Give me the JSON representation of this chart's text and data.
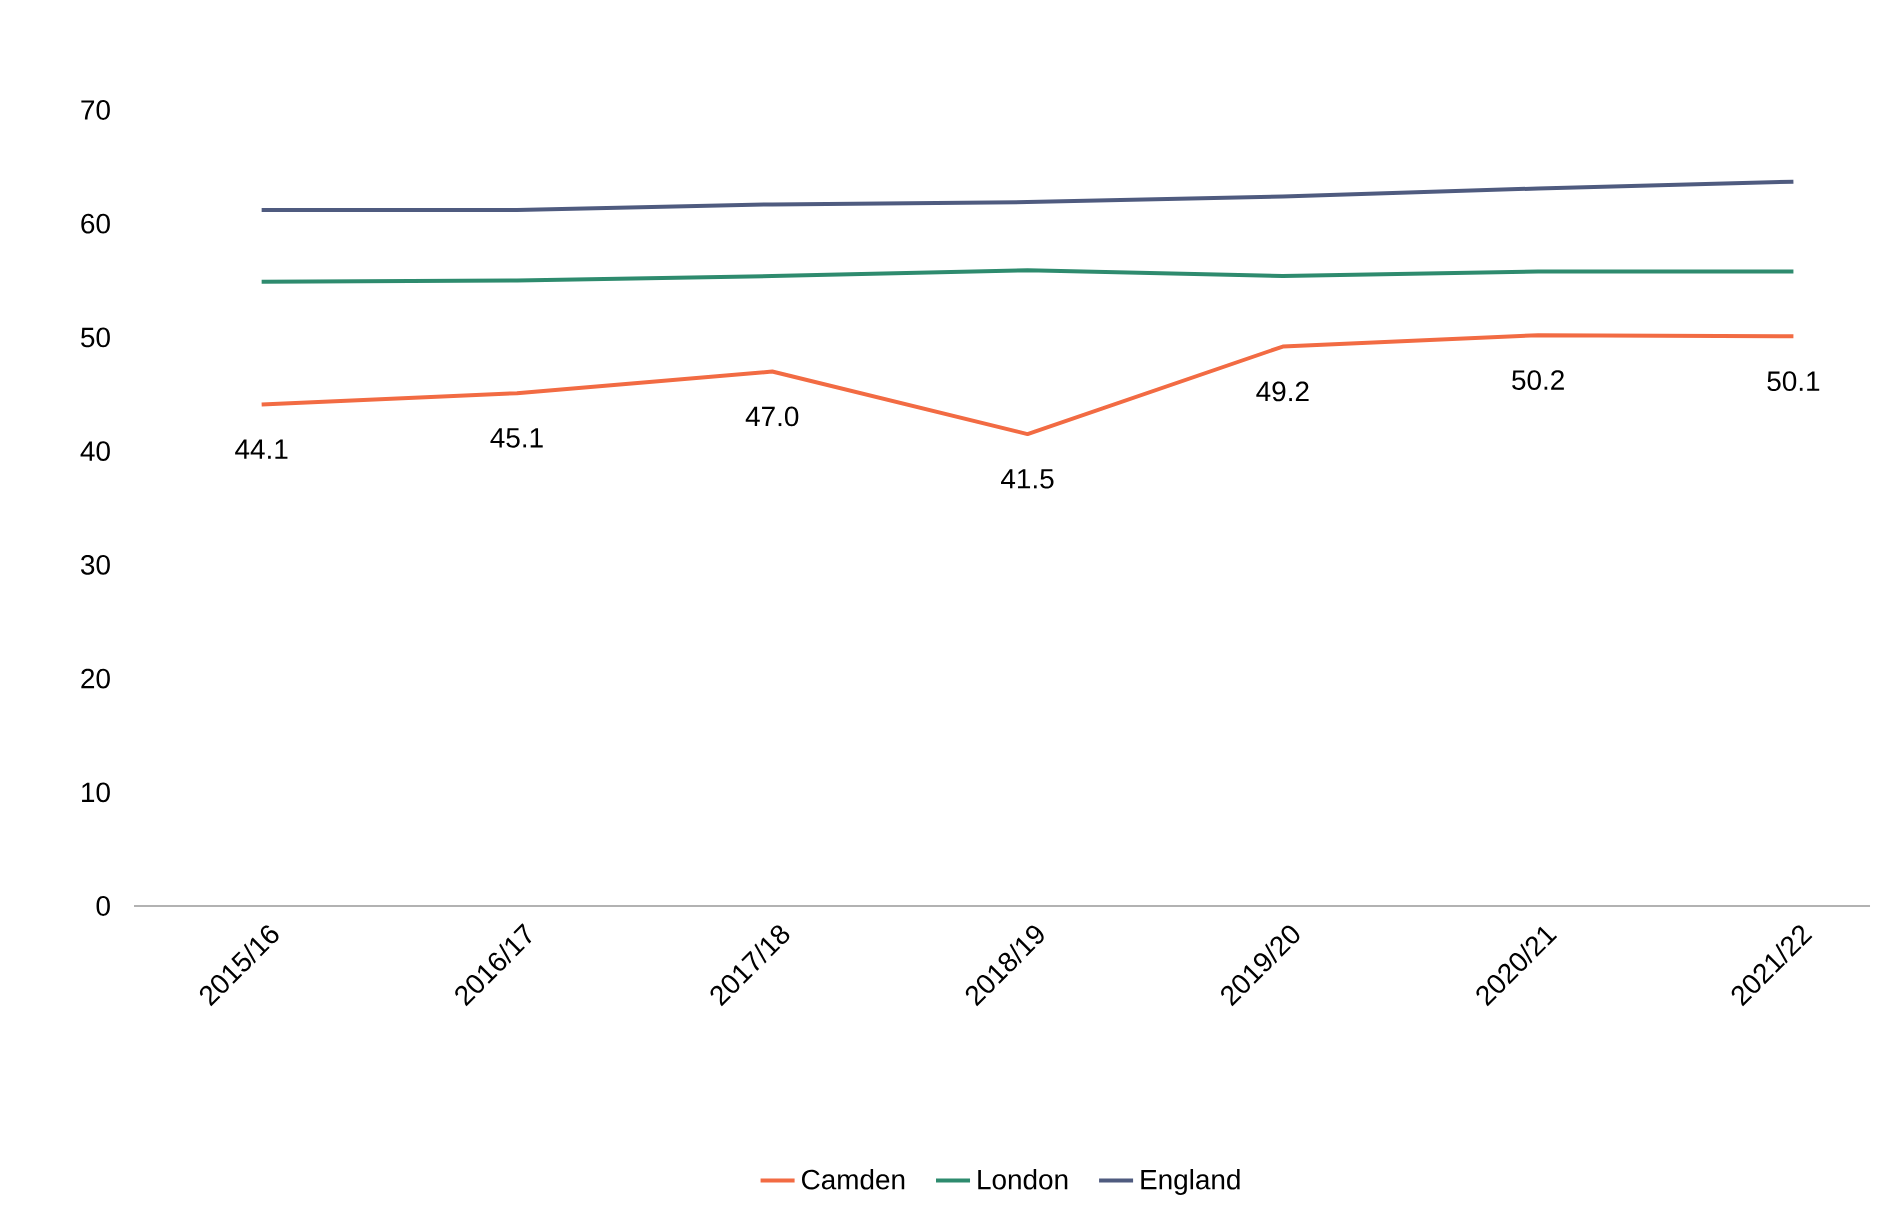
{
  "chart_data": {
    "type": "line",
    "categories": [
      "2015/16",
      "2016/17",
      "2017/18",
      "2018/19",
      "2019/20",
      "2020/21",
      "2021/22"
    ],
    "series": [
      {
        "name": "Camden",
        "color": "#f26b43",
        "values": [
          44.1,
          45.1,
          47.0,
          41.5,
          49.2,
          50.2,
          50.1
        ],
        "value_labels": [
          "44.1",
          "45.1",
          "47.0",
          "41.5",
          "49.2",
          "50.2",
          "50.1"
        ]
      },
      {
        "name": "London",
        "color": "#2e8b6e",
        "values": [
          54.9,
          55.0,
          55.4,
          55.9,
          55.4,
          55.8,
          55.8
        ]
      },
      {
        "name": "England",
        "color": "#4f5b7f",
        "values": [
          61.2,
          61.2,
          61.7,
          61.9,
          62.4,
          63.1,
          63.7
        ]
      }
    ],
    "ylim": [
      0,
      70
    ],
    "yticks": [
      0,
      10,
      20,
      30,
      40,
      50,
      60,
      70
    ],
    "grid": false,
    "legend": "bottom",
    "marker": "none",
    "line_style": "solid"
  }
}
